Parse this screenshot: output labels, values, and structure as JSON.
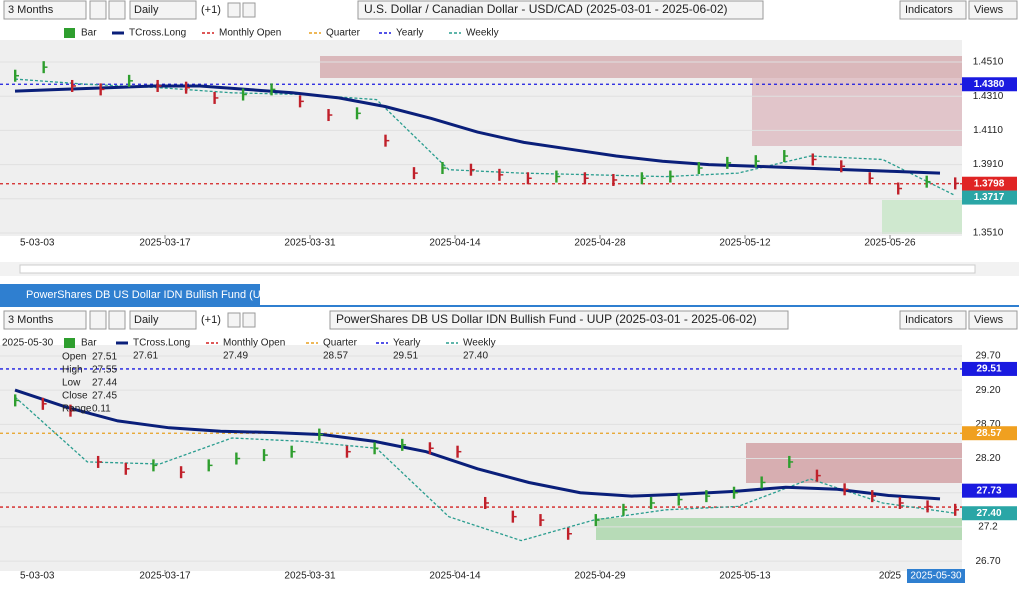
{
  "panel1": {
    "toolbar": {
      "period": "3 Months",
      "interval": "Daily",
      "offset": "(+1)",
      "title": "U.S. Dollar / Canadian Dollar - USD/CAD (2025-03-01 - 2025-06-02)",
      "indicators": "Indicators",
      "views": "Views"
    },
    "legend": [
      {
        "name": "Bar",
        "color": "#2e9e2e"
      },
      {
        "name": "TCross.Long",
        "color": "#0a1f7a"
      },
      {
        "name": "Monthly Open",
        "color": "#d42020"
      },
      {
        "name": "Quarter",
        "color": "#e8a020"
      },
      {
        "name": "Yearly",
        "color": "#1a1ae0"
      },
      {
        "name": "Weekly",
        "color": "#2a9d8f"
      }
    ],
    "ylim": [
      1.3498,
      1.4639
    ],
    "yticks": [
      {
        "value": 1.451,
        "label": "1.4510"
      },
      {
        "value": 1.431,
        "label": "1.4310"
      },
      {
        "value": 1.411,
        "label": "1.4110"
      },
      {
        "value": 1.391,
        "label": "1.3910"
      },
      {
        "value": 1.371,
        "label": "1.3710"
      },
      {
        "value": 1.351,
        "label": "1.3510"
      }
    ],
    "xlabels": [
      "5-03-03",
      "2025-03-17",
      "2025-03-31",
      "2025-04-14",
      "2025-04-28",
      "2025-05-12",
      "2025-05-26"
    ],
    "closes": [
      1.443,
      1.448,
      1.437,
      1.435,
      1.44,
      1.437,
      1.436,
      1.43,
      1.432,
      1.435,
      1.428,
      1.42,
      1.421,
      1.405,
      1.386,
      1.389,
      1.388,
      1.385,
      1.383,
      1.384,
      1.383,
      1.382,
      1.383,
      1.384,
      1.389,
      1.392,
      1.393,
      1.396,
      1.394,
      1.39,
      1.383,
      1.377,
      1.381,
      1.38
    ],
    "tcross": [
      1.434,
      1.435,
      1.436,
      1.437,
      1.437,
      1.435,
      1.433,
      1.43,
      1.425,
      1.418,
      1.41,
      1.404,
      1.4,
      1.396,
      1.393,
      1.391,
      1.39,
      1.389,
      1.388,
      1.387,
      1.386
    ],
    "weekly": [
      1.441,
      1.438,
      1.436,
      1.433,
      1.432,
      1.429,
      1.388,
      1.386,
      1.385,
      1.384,
      1.386,
      1.396,
      1.394,
      1.373
    ],
    "levels": [
      {
        "value": 1.438,
        "color": "#1a1ae0"
      },
      {
        "value": 1.3798,
        "color": "#d42020"
      }
    ],
    "tags": [
      {
        "value": 1.438,
        "label": "1.4380",
        "color": "#1a1ae0"
      },
      {
        "value": 1.3798,
        "label": "1.3798",
        "color": "#e02424"
      },
      {
        "value": 1.3717,
        "label": "1.3717",
        "color": "#2aa6a6"
      }
    ]
  },
  "panel2": {
    "tab": "PowerShares DB US Dollar IDN Bullish Fund (UUP)",
    "toolbar": {
      "period": "3 Months",
      "interval": "Daily",
      "offset": "(+1)",
      "title": "PowerShares DB US Dollar IDN Bullish Fund - UUP (2025-03-01 - 2025-06-02)",
      "indicators": "Indicators",
      "views": "Views"
    },
    "legend": [
      {
        "name": "Bar",
        "color": "#2e9e2e"
      },
      {
        "name": "TCross.Long",
        "color": "#0a1f7a",
        "value": "27.61"
      },
      {
        "name": "Monthly Open",
        "color": "#d42020",
        "value": "27.49"
      },
      {
        "name": "Quarter",
        "color": "#e8a020",
        "value": "28.57"
      },
      {
        "name": "Yearly",
        "color": "#1a1ae0",
        "value": "29.51"
      },
      {
        "name": "Weekly",
        "color": "#2a9d8f",
        "value": "27.40"
      }
    ],
    "ohlc": {
      "date": "2025-05-30",
      "rows": [
        [
          "Open",
          "27.51"
        ],
        [
          "High",
          "27.55"
        ],
        [
          "Low",
          "27.44"
        ],
        [
          "Close",
          "27.45"
        ],
        [
          "Range",
          "0.11"
        ]
      ]
    },
    "ylim": [
      26.57,
      29.86
    ],
    "yticks": [
      {
        "value": 29.7,
        "label": "29.70"
      },
      {
        "value": 29.2,
        "label": "29.20"
      },
      {
        "value": 28.7,
        "label": "28.70"
      },
      {
        "value": 28.2,
        "label": "28.20"
      },
      {
        "value": 27.7,
        "label": "27.70"
      },
      27.2,
      {
        "value": 26.7,
        "label": "26.70"
      }
    ],
    "xlabels": [
      "5-03-03",
      "2025-03-17",
      "2025-03-31",
      "2025-04-14",
      "2025-04-29",
      "2025-05-13",
      "2025"
    ],
    "closes": [
      29.05,
      29.0,
      28.9,
      28.15,
      28.05,
      28.1,
      28.0,
      28.1,
      28.2,
      28.25,
      28.3,
      28.55,
      28.3,
      28.35,
      28.4,
      28.35,
      28.3,
      27.55,
      27.35,
      27.3,
      27.1,
      27.3,
      27.45,
      27.55,
      27.6,
      27.65,
      27.7,
      27.85,
      28.15,
      27.95,
      27.75,
      27.65,
      27.55,
      27.5,
      27.45
    ],
    "tcross": [
      29.2,
      28.95,
      28.75,
      28.65,
      28.6,
      28.58,
      28.55,
      28.45,
      28.3,
      28.05,
      27.85,
      27.7,
      27.65,
      27.68,
      27.72,
      27.78,
      27.75,
      27.66,
      27.61
    ],
    "weekly": [
      29.1,
      28.15,
      28.12,
      28.5,
      28.45,
      28.35,
      27.35,
      27.0,
      27.3,
      27.45,
      27.5,
      27.9,
      27.55,
      27.4
    ],
    "levels": [
      {
        "value": 29.51,
        "color": "#1a1ae0"
      },
      {
        "value": 28.57,
        "color": "#e8a020"
      },
      {
        "value": 27.49,
        "color": "#d42020"
      }
    ],
    "tags": [
      {
        "value": 29.51,
        "label": "29.51",
        "color": "#1a1ae0"
      },
      {
        "value": 28.57,
        "label": "28.57",
        "color": "#f0a020"
      },
      {
        "value": 27.73,
        "label": "27.73",
        "color": "#1a1ae0"
      },
      {
        "value": 27.4,
        "label": "27.40",
        "color": "#2aa6a6"
      }
    ],
    "date_tag": "2025-05-30"
  }
}
